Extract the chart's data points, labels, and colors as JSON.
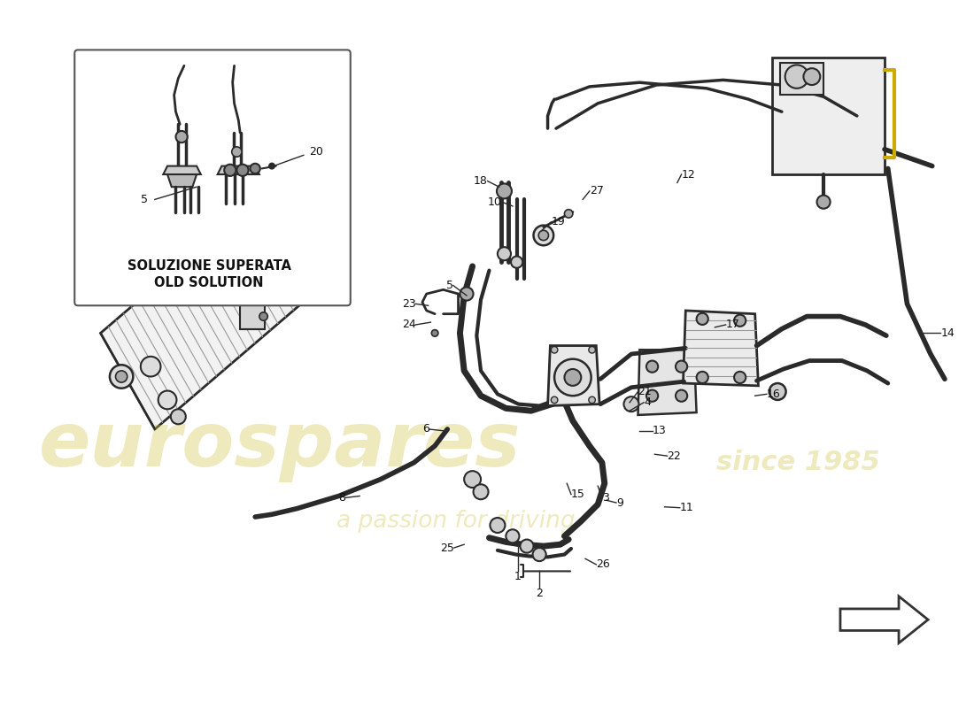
{
  "bg_color": "#ffffff",
  "line_color": "#2a2a2a",
  "gray1": "#cccccc",
  "gray2": "#aaaaaa",
  "gray3": "#888888",
  "gray4": "#666666",
  "box_label_line1": "SOLUZIONE SUPERATA",
  "box_label_line2": "OLD SOLUTION",
  "watermark_color": "#d4c855",
  "watermark_alpha": 0.38,
  "wm_text1": "eurospares",
  "wm_text2": "a passion for driving",
  "wm_text3": "since 1985"
}
